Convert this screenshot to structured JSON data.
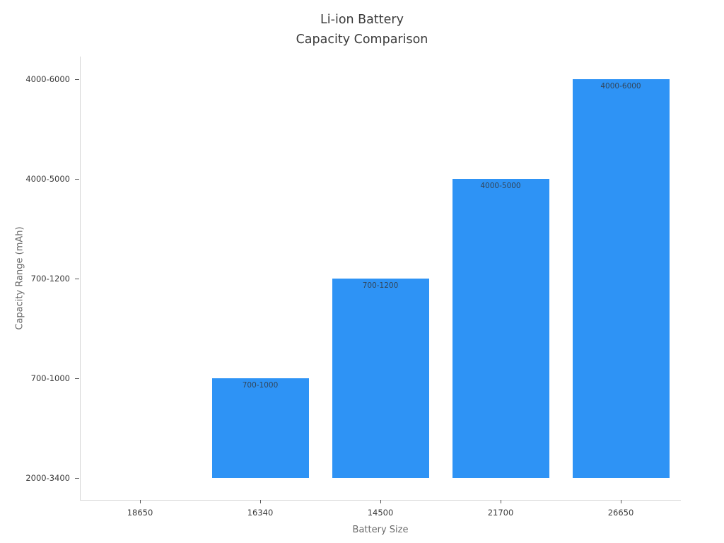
{
  "chart_data": {
    "type": "bar",
    "title": "Li-ion Battery\nCapacity Comparison",
    "xlabel": "Battery Size",
    "ylabel": "Capacity Range (mAh)",
    "categories": [
      "18650",
      "16340",
      "14500",
      "21700",
      "26650"
    ],
    "values": [
      "2000-3400",
      "700-1000",
      "700-1200",
      "4000-5000",
      "4000-6000"
    ],
    "y_ticks": [
      "2000-3400",
      "700-1000",
      "700-1200",
      "4000-5000",
      "4000-6000"
    ],
    "bar_labels": [
      "",
      "700-1000",
      "700-1200",
      "4000-5000",
      "4000-6000"
    ],
    "bar_color": "#2e93f5",
    "bar_label_color": "#31455a",
    "tick_label_color": "#3b3b3b",
    "axis_label_color": "#6b6b6b",
    "spine_color": "#d6d6d6",
    "legend": false,
    "grid": false
  }
}
